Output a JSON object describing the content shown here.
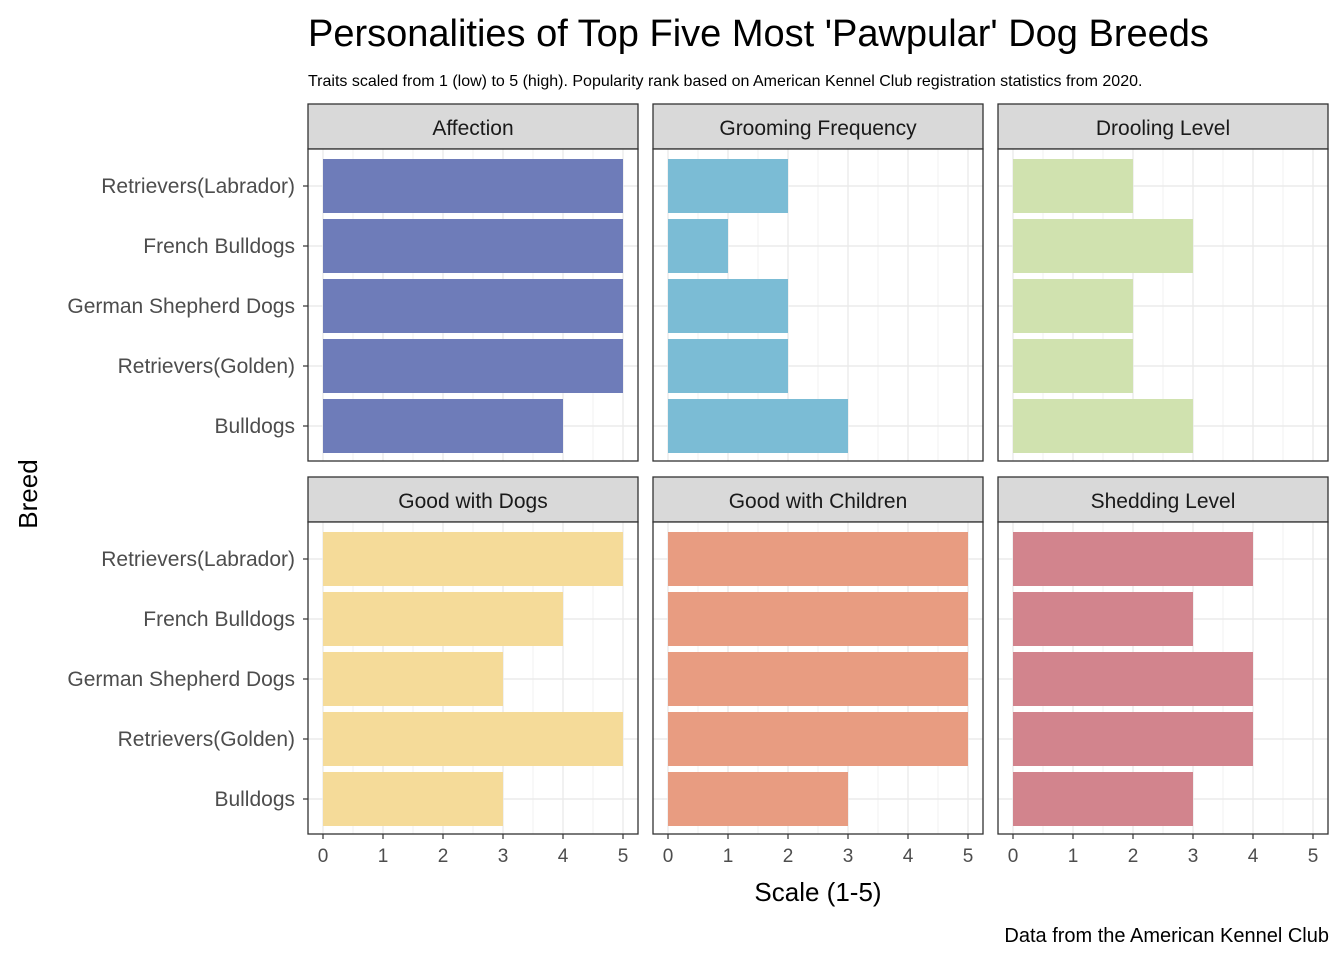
{
  "chart_data": {
    "type": "bar",
    "orientation": "horizontal",
    "title": "Personalities of Top Five Most 'Pawpular' Dog Breeds",
    "subtitle": "Traits scaled from 1 (low) to 5 (high). Popularity rank based on American Kennel Club registration statistics from 2020.",
    "xlabel": "Scale (1-5)",
    "ylabel": "Breed",
    "caption": "Data from the American Kennel Club",
    "categories": [
      "Retrievers(Labrador)",
      "French Bulldogs",
      "German Shepherd Dogs",
      "Retrievers(Golden)",
      "Bulldogs"
    ],
    "xlim": [
      0,
      5
    ],
    "x_ticks": [
      0,
      1,
      2,
      3,
      4,
      5
    ],
    "grid": true,
    "panels": [
      {
        "name": "Affection",
        "color": "#6e7cb9",
        "values": [
          5,
          5,
          5,
          5,
          4
        ]
      },
      {
        "name": "Grooming Frequency",
        "color": "#7bbcd5",
        "values": [
          2,
          1,
          2,
          2,
          3
        ]
      },
      {
        "name": "Drooling Level",
        "color": "#d0e2af",
        "values": [
          2,
          3,
          2,
          2,
          3
        ]
      },
      {
        "name": "Good with Dogs",
        "color": "#f5db99",
        "values": [
          5,
          4,
          3,
          5,
          3
        ]
      },
      {
        "name": "Good with Children",
        "color": "#e89c81",
        "values": [
          5,
          5,
          5,
          5,
          3
        ]
      },
      {
        "name": "Shedding Level",
        "color": "#d2848d",
        "values": [
          4,
          3,
          4,
          4,
          3
        ]
      }
    ]
  }
}
